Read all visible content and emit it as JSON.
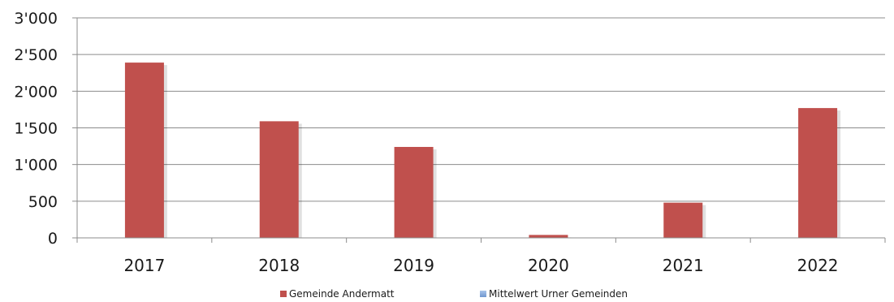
{
  "chart_data": {
    "type": "bar",
    "categories": [
      "2017",
      "2018",
      "2019",
      "2020",
      "2021",
      "2022"
    ],
    "series": [
      {
        "name": "Gemeinde Andermatt",
        "values": [
          2390,
          1590,
          1240,
          40,
          480,
          1770
        ],
        "color": "#c0504d"
      },
      {
        "name": "Mittelwert Urner Gemeinden",
        "values": [
          0,
          0,
          0,
          0,
          0,
          0
        ],
        "color": "#7fa6d9"
      }
    ],
    "ylim": [
      0,
      3000
    ],
    "yticks": [
      0,
      500,
      1000,
      1500,
      2000,
      2500,
      3000
    ],
    "ytick_labels": [
      "0",
      "500",
      "1'000",
      "1'500",
      "2'000",
      "2'500",
      "3'000"
    ],
    "grid": true,
    "legend_position": "bottom"
  }
}
